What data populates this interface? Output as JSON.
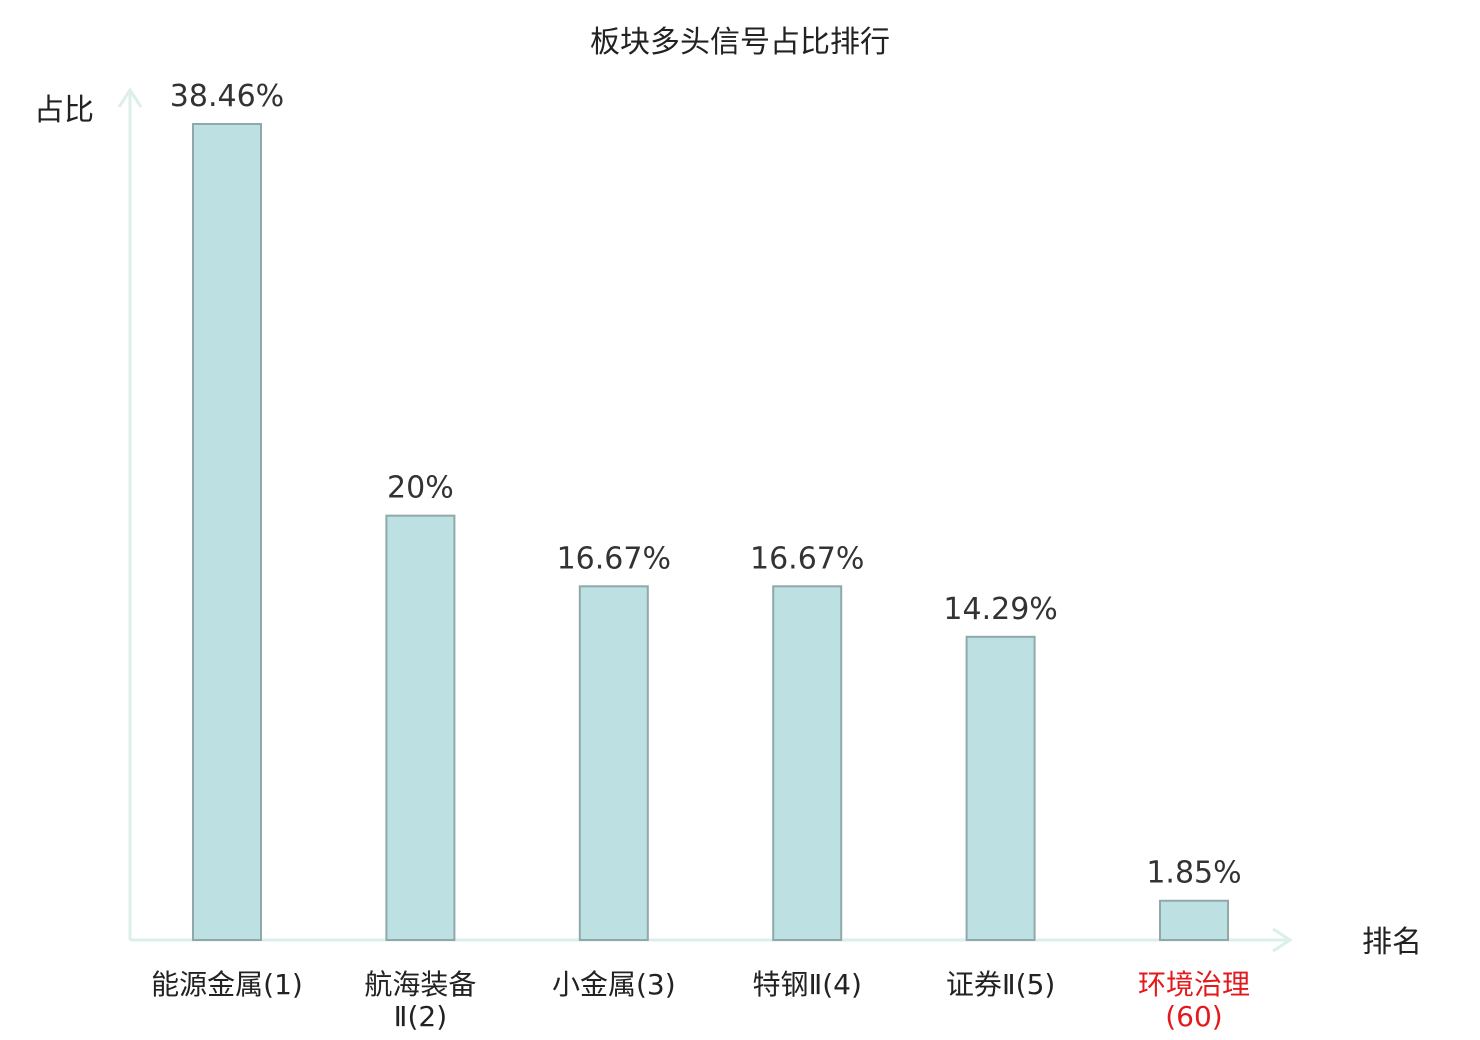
{
  "chart_data": {
    "type": "bar",
    "title": "板块多头信号占比排行",
    "ylabel": "占比",
    "xlabel": "排名",
    "categories": [
      {
        "name": "能源金属",
        "rank": "(1)",
        "highlight": false
      },
      {
        "name": "航海装备",
        "rank": "Ⅱ(2)",
        "highlight": false
      },
      {
        "name": "小金属",
        "rank": "(3)",
        "highlight": false
      },
      {
        "name": "特钢",
        "rank": "Ⅱ(4)",
        "highlight": false
      },
      {
        "name": "证券",
        "rank": "Ⅱ(5)",
        "highlight": false
      },
      {
        "name": "环境治理",
        "rank": "(60)",
        "highlight": true
      }
    ],
    "values": [
      38.46,
      20,
      16.67,
      16.67,
      14.29,
      1.85
    ],
    "value_labels": [
      "38.46%",
      "20%",
      "16.67%",
      "16.67%",
      "14.29%",
      "1.85%"
    ],
    "ylim": [
      0,
      40
    ],
    "grid": false,
    "colors": {
      "bar_fill": "#bde0e3",
      "bar_stroke": "#8fa9ab",
      "axis": "#dcefeb",
      "highlight_text": "#e31a1c",
      "text": "#222222"
    }
  }
}
